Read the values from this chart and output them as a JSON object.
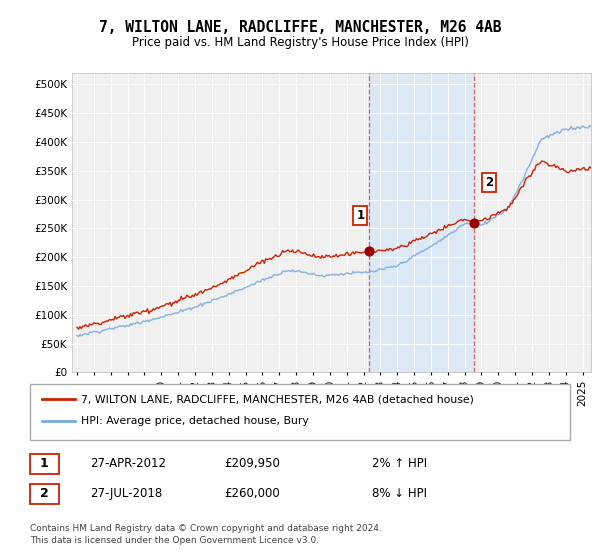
{
  "title": "7, WILTON LANE, RADCLIFFE, MANCHESTER, M26 4AB",
  "subtitle": "Price paid vs. HM Land Registry's House Price Index (HPI)",
  "ylabel_ticks": [
    "£0",
    "£50K",
    "£100K",
    "£150K",
    "£200K",
    "£250K",
    "£300K",
    "£350K",
    "£400K",
    "£450K",
    "£500K"
  ],
  "ytick_values": [
    0,
    50000,
    100000,
    150000,
    200000,
    250000,
    300000,
    350000,
    400000,
    450000,
    500000
  ],
  "ylim": [
    0,
    520000
  ],
  "xlim_start": 1994.7,
  "xlim_end": 2025.5,
  "xtick_years": [
    1995,
    1996,
    1997,
    1998,
    1999,
    2000,
    2001,
    2002,
    2003,
    2004,
    2005,
    2006,
    2007,
    2008,
    2009,
    2010,
    2011,
    2012,
    2013,
    2014,
    2015,
    2016,
    2017,
    2018,
    2019,
    2020,
    2021,
    2022,
    2023,
    2024,
    2025
  ],
  "hpi_color": "#7aabdc",
  "price_color": "#cc2200",
  "marker1_date": 2012.32,
  "marker1_price": 209950,
  "marker2_date": 2018.57,
  "marker2_price": 260000,
  "vline1_x": 2012.32,
  "vline2_x": 2018.57,
  "legend_label1": "7, WILTON LANE, RADCLIFFE, MANCHESTER, M26 4AB (detached house)",
  "legend_label2": "HPI: Average price, detached house, Bury",
  "annotation1_label": "1",
  "annotation2_label": "2",
  "table_row1": [
    "1",
    "27-APR-2012",
    "£209,950",
    "2% ↑ HPI"
  ],
  "table_row2": [
    "2",
    "27-JUL-2018",
    "£260,000",
    "8% ↓ HPI"
  ],
  "footer": "Contains HM Land Registry data © Crown copyright and database right 2024.\nThis data is licensed under the Open Government Licence v3.0.",
  "background_color": "#ffffff",
  "plot_bg_color": "#f0f0f0",
  "shade_color": "#dce9f5",
  "grid_color": "#ffffff"
}
